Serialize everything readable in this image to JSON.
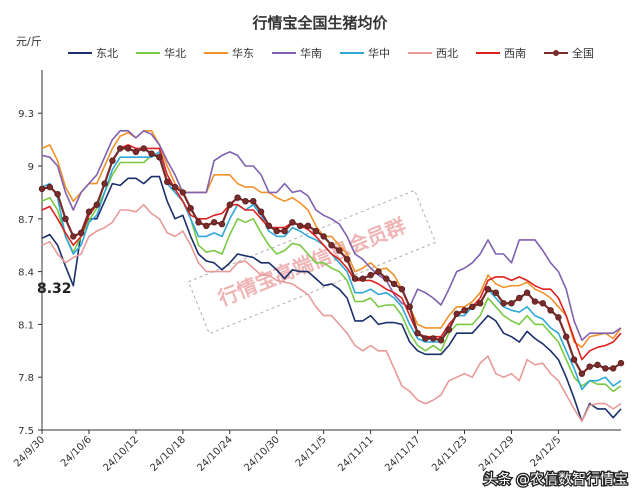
{
  "chart_data": {
    "type": "line",
    "title": "行情宝全国生猪均价",
    "ylabel": "元/斤",
    "ylim": [
      7.5,
      9.5
    ],
    "yticks": [
      "7.5",
      "7.8",
      "8.1",
      "8.4",
      "8.7",
      "9",
      "9.3"
    ],
    "x_tick_labels": [
      "24/9/30",
      "24/10/6",
      "24/10/12",
      "24/10/18",
      "24/10/24",
      "24/10/30",
      "24/11/5",
      "24/11/11",
      "24/11/17",
      "24/11/23",
      "24/11/29",
      "24/12/5"
    ],
    "legend_position": "top",
    "grid": false,
    "callout": "8.32",
    "watermark": "行情宝高端信息会员群",
    "source": "头条 @农信数智行情宝",
    "colors": {
      "东北": "#1b2f6b",
      "华北": "#7ac943",
      "华东": "#f0922c",
      "华南": "#8060b0",
      "华中": "#2ea8d8",
      "西北": "#e89a9a",
      "西南": "#dd2020",
      "全国": "#7a2b2b"
    },
    "series": [
      {
        "name": "东北",
        "values": [
          8.59,
          8.61,
          8.55,
          8.43,
          8.32,
          8.62,
          8.7,
          8.7,
          8.8,
          8.9,
          8.89,
          8.93,
          8.93,
          8.9,
          8.94,
          8.94,
          8.8,
          8.7,
          8.72,
          8.6,
          8.5,
          8.46,
          8.45,
          8.41,
          8.45,
          8.5,
          8.49,
          8.48,
          8.45,
          8.45,
          8.41,
          8.36,
          8.41,
          8.4,
          8.4,
          8.36,
          8.32,
          8.33,
          8.3,
          8.25,
          8.12,
          8.12,
          8.15,
          8.1,
          8.11,
          8.11,
          8.1,
          8.0,
          7.95,
          7.93,
          7.93,
          7.93,
          7.98,
          8.05,
          8.05,
          8.05,
          8.1,
          8.15,
          8.12,
          8.05,
          8.03,
          8.0,
          8.06,
          8.02,
          7.99,
          7.95,
          7.9,
          7.8,
          7.68,
          7.55,
          7.65,
          7.62,
          7.62,
          7.57,
          7.62
        ]
      },
      {
        "name": "华北",
        "values": [
          8.8,
          8.82,
          8.75,
          8.6,
          8.51,
          8.6,
          8.69,
          8.76,
          8.85,
          8.95,
          9.02,
          9.02,
          9.02,
          9.02,
          9.06,
          9.05,
          8.9,
          8.85,
          8.8,
          8.7,
          8.55,
          8.51,
          8.52,
          8.5,
          8.61,
          8.7,
          8.68,
          8.7,
          8.62,
          8.55,
          8.5,
          8.52,
          8.56,
          8.55,
          8.5,
          8.45,
          8.45,
          8.42,
          8.4,
          8.35,
          8.23,
          8.23,
          8.25,
          8.2,
          8.21,
          8.21,
          8.15,
          8.05,
          7.98,
          7.95,
          7.98,
          7.95,
          8.05,
          8.1,
          8.1,
          8.1,
          8.15,
          8.25,
          8.2,
          8.15,
          8.12,
          8.1,
          8.15,
          8.1,
          8.1,
          8.05,
          8.0,
          7.9,
          7.8,
          7.75,
          7.78,
          7.76,
          7.76,
          7.72,
          7.75
        ]
      },
      {
        "name": "华东",
        "values": [
          9.1,
          9.12,
          9.03,
          8.88,
          8.8,
          8.85,
          8.9,
          8.9,
          9.0,
          9.1,
          9.17,
          9.19,
          9.16,
          9.2,
          9.2,
          9.12,
          9.0,
          8.9,
          8.85,
          8.85,
          8.85,
          8.85,
          8.95,
          8.95,
          8.95,
          8.9,
          8.88,
          8.88,
          8.85,
          8.85,
          8.82,
          8.8,
          8.82,
          8.79,
          8.75,
          8.66,
          8.6,
          8.6,
          8.55,
          8.5,
          8.4,
          8.42,
          8.45,
          8.41,
          8.42,
          8.38,
          8.3,
          8.2,
          8.1,
          8.08,
          8.08,
          8.08,
          8.15,
          8.2,
          8.2,
          8.23,
          8.28,
          8.38,
          8.33,
          8.31,
          8.32,
          8.32,
          8.34,
          8.3,
          8.28,
          8.25,
          8.2,
          8.15,
          8.0,
          7.97,
          8.03,
          8.04,
          8.05,
          8.02,
          8.08
        ]
      },
      {
        "name": "华南",
        "values": [
          9.06,
          9.05,
          9.0,
          8.85,
          8.75,
          8.85,
          8.9,
          8.95,
          9.05,
          9.15,
          9.2,
          9.2,
          9.16,
          9.2,
          9.18,
          9.12,
          9.03,
          8.95,
          8.85,
          8.85,
          8.85,
          8.85,
          9.03,
          9.06,
          9.08,
          9.06,
          9.0,
          9.0,
          8.95,
          8.85,
          8.85,
          8.9,
          8.85,
          8.86,
          8.83,
          8.75,
          8.72,
          8.7,
          8.67,
          8.6,
          8.5,
          8.47,
          8.42,
          8.38,
          8.35,
          8.27,
          8.22,
          8.2,
          8.3,
          8.28,
          8.25,
          8.21,
          8.3,
          8.4,
          8.42,
          8.45,
          8.5,
          8.58,
          8.5,
          8.5,
          8.45,
          8.58,
          8.58,
          8.58,
          8.52,
          8.45,
          8.4,
          8.3,
          8.12,
          8.01,
          8.05,
          8.05,
          8.05,
          8.05,
          8.08
        ]
      },
      {
        "name": "华中",
        "values": [
          8.88,
          8.9,
          8.82,
          8.6,
          8.5,
          8.55,
          8.68,
          8.72,
          8.85,
          8.98,
          9.05,
          9.05,
          9.05,
          9.05,
          9.05,
          9.08,
          8.9,
          8.85,
          8.8,
          8.7,
          8.6,
          8.6,
          8.62,
          8.6,
          8.7,
          8.78,
          8.75,
          8.78,
          8.72,
          8.63,
          8.6,
          8.6,
          8.65,
          8.63,
          8.6,
          8.58,
          8.55,
          8.5,
          8.45,
          8.4,
          8.28,
          8.28,
          8.3,
          8.27,
          8.28,
          8.25,
          8.2,
          8.1,
          8.02,
          8.0,
          8.0,
          8.0,
          8.1,
          8.15,
          8.15,
          8.2,
          8.22,
          8.3,
          8.25,
          8.2,
          8.18,
          8.17,
          8.2,
          8.15,
          8.13,
          8.08,
          8.05,
          7.95,
          7.85,
          7.73,
          7.78,
          7.78,
          7.8,
          7.75,
          7.78
        ]
      },
      {
        "name": "西北",
        "values": [
          8.55,
          8.57,
          8.5,
          8.45,
          8.48,
          8.5,
          8.6,
          8.63,
          8.65,
          8.68,
          8.75,
          8.75,
          8.74,
          8.78,
          8.73,
          8.7,
          8.62,
          8.6,
          8.63,
          8.55,
          8.45,
          8.4,
          8.4,
          8.4,
          8.4,
          8.45,
          8.46,
          8.42,
          8.38,
          8.38,
          8.35,
          8.34,
          8.33,
          8.3,
          8.27,
          8.2,
          8.15,
          8.15,
          8.1,
          8.05,
          7.98,
          7.95,
          7.98,
          7.95,
          7.95,
          7.85,
          7.75,
          7.72,
          7.67,
          7.65,
          7.67,
          7.7,
          7.78,
          7.8,
          7.82,
          7.8,
          7.88,
          7.92,
          7.82,
          7.8,
          7.82,
          7.78,
          7.9,
          7.87,
          7.88,
          7.82,
          7.78,
          7.7,
          7.62,
          7.55,
          7.64,
          7.65,
          7.65,
          7.62,
          7.65
        ]
      },
      {
        "name": "西南",
        "values": [
          8.75,
          8.77,
          8.7,
          8.62,
          8.55,
          8.6,
          8.72,
          8.78,
          8.9,
          9.03,
          9.1,
          9.12,
          9.1,
          9.1,
          9.1,
          9.1,
          8.95,
          8.87,
          8.8,
          8.72,
          8.7,
          8.7,
          8.72,
          8.73,
          8.78,
          8.78,
          8.75,
          8.75,
          8.7,
          8.65,
          8.65,
          8.65,
          8.68,
          8.66,
          8.64,
          8.6,
          8.55,
          8.5,
          8.47,
          8.42,
          8.35,
          8.35,
          8.35,
          8.33,
          8.3,
          8.28,
          8.25,
          8.15,
          8.05,
          8.03,
          8.03,
          8.03,
          8.1,
          8.15,
          8.18,
          8.2,
          8.25,
          8.35,
          8.37,
          8.37,
          8.35,
          8.37,
          8.35,
          8.32,
          8.3,
          8.3,
          8.25,
          8.15,
          8.02,
          7.9,
          7.95,
          7.97,
          7.98,
          8.0,
          8.05
        ]
      },
      {
        "name": "全国",
        "values": [
          8.87,
          8.88,
          8.84,
          8.7,
          8.6,
          8.62,
          8.74,
          8.78,
          8.9,
          9.03,
          9.1,
          9.1,
          9.08,
          9.1,
          9.07,
          9.05,
          8.91,
          8.88,
          8.85,
          8.76,
          8.68,
          8.66,
          8.68,
          8.67,
          8.78,
          8.82,
          8.8,
          8.8,
          8.74,
          8.66,
          8.63,
          8.63,
          8.68,
          8.66,
          8.66,
          8.63,
          8.6,
          8.55,
          8.52,
          8.47,
          8.36,
          8.36,
          8.38,
          8.4,
          8.36,
          8.33,
          8.3,
          8.2,
          8.05,
          8.02,
          8.02,
          8.01,
          8.07,
          8.16,
          8.18,
          8.2,
          8.22,
          8.3,
          8.28,
          8.22,
          8.22,
          8.25,
          8.28,
          8.23,
          8.22,
          8.18,
          8.14,
          8.03,
          7.9,
          7.82,
          7.86,
          7.87,
          7.85,
          7.85,
          7.88
        ]
      }
    ]
  }
}
